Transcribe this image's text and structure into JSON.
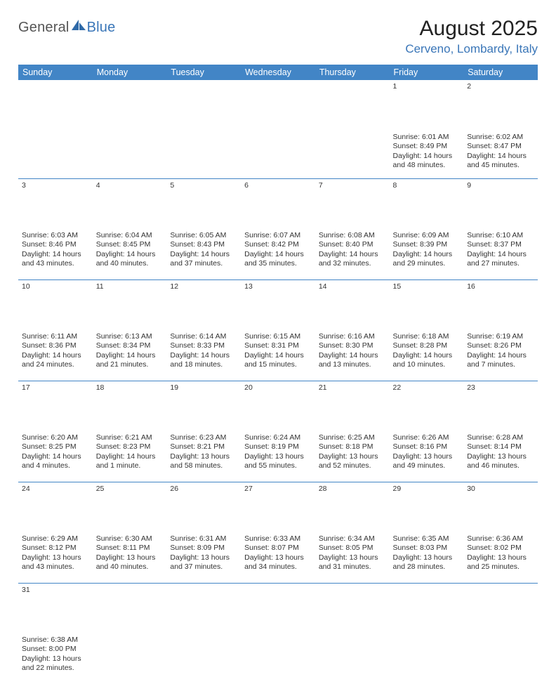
{
  "logo": {
    "text1": "General",
    "text2": "Blue"
  },
  "title": "August 2025",
  "location": "Cerveno, Lombardy, Italy",
  "day_header_bg": "#4285c6",
  "day_header_fg": "#ffffff",
  "daynum_bg": "#e7e7e7",
  "border_color": "#4285c6",
  "days_of_week": [
    "Sunday",
    "Monday",
    "Tuesday",
    "Wednesday",
    "Thursday",
    "Friday",
    "Saturday"
  ],
  "weeks": [
    [
      null,
      null,
      null,
      null,
      null,
      {
        "n": "1",
        "sr": "Sunrise: 6:01 AM",
        "ss": "Sunset: 8:49 PM",
        "dl": "Daylight: 14 hours and 48 minutes."
      },
      {
        "n": "2",
        "sr": "Sunrise: 6:02 AM",
        "ss": "Sunset: 8:47 PM",
        "dl": "Daylight: 14 hours and 45 minutes."
      }
    ],
    [
      {
        "n": "3",
        "sr": "Sunrise: 6:03 AM",
        "ss": "Sunset: 8:46 PM",
        "dl": "Daylight: 14 hours and 43 minutes."
      },
      {
        "n": "4",
        "sr": "Sunrise: 6:04 AM",
        "ss": "Sunset: 8:45 PM",
        "dl": "Daylight: 14 hours and 40 minutes."
      },
      {
        "n": "5",
        "sr": "Sunrise: 6:05 AM",
        "ss": "Sunset: 8:43 PM",
        "dl": "Daylight: 14 hours and 37 minutes."
      },
      {
        "n": "6",
        "sr": "Sunrise: 6:07 AM",
        "ss": "Sunset: 8:42 PM",
        "dl": "Daylight: 14 hours and 35 minutes."
      },
      {
        "n": "7",
        "sr": "Sunrise: 6:08 AM",
        "ss": "Sunset: 8:40 PM",
        "dl": "Daylight: 14 hours and 32 minutes."
      },
      {
        "n": "8",
        "sr": "Sunrise: 6:09 AM",
        "ss": "Sunset: 8:39 PM",
        "dl": "Daylight: 14 hours and 29 minutes."
      },
      {
        "n": "9",
        "sr": "Sunrise: 6:10 AM",
        "ss": "Sunset: 8:37 PM",
        "dl": "Daylight: 14 hours and 27 minutes."
      }
    ],
    [
      {
        "n": "10",
        "sr": "Sunrise: 6:11 AM",
        "ss": "Sunset: 8:36 PM",
        "dl": "Daylight: 14 hours and 24 minutes."
      },
      {
        "n": "11",
        "sr": "Sunrise: 6:13 AM",
        "ss": "Sunset: 8:34 PM",
        "dl": "Daylight: 14 hours and 21 minutes."
      },
      {
        "n": "12",
        "sr": "Sunrise: 6:14 AM",
        "ss": "Sunset: 8:33 PM",
        "dl": "Daylight: 14 hours and 18 minutes."
      },
      {
        "n": "13",
        "sr": "Sunrise: 6:15 AM",
        "ss": "Sunset: 8:31 PM",
        "dl": "Daylight: 14 hours and 15 minutes."
      },
      {
        "n": "14",
        "sr": "Sunrise: 6:16 AM",
        "ss": "Sunset: 8:30 PM",
        "dl": "Daylight: 14 hours and 13 minutes."
      },
      {
        "n": "15",
        "sr": "Sunrise: 6:18 AM",
        "ss": "Sunset: 8:28 PM",
        "dl": "Daylight: 14 hours and 10 minutes."
      },
      {
        "n": "16",
        "sr": "Sunrise: 6:19 AM",
        "ss": "Sunset: 8:26 PM",
        "dl": "Daylight: 14 hours and 7 minutes."
      }
    ],
    [
      {
        "n": "17",
        "sr": "Sunrise: 6:20 AM",
        "ss": "Sunset: 8:25 PM",
        "dl": "Daylight: 14 hours and 4 minutes."
      },
      {
        "n": "18",
        "sr": "Sunrise: 6:21 AM",
        "ss": "Sunset: 8:23 PM",
        "dl": "Daylight: 14 hours and 1 minute."
      },
      {
        "n": "19",
        "sr": "Sunrise: 6:23 AM",
        "ss": "Sunset: 8:21 PM",
        "dl": "Daylight: 13 hours and 58 minutes."
      },
      {
        "n": "20",
        "sr": "Sunrise: 6:24 AM",
        "ss": "Sunset: 8:19 PM",
        "dl": "Daylight: 13 hours and 55 minutes."
      },
      {
        "n": "21",
        "sr": "Sunrise: 6:25 AM",
        "ss": "Sunset: 8:18 PM",
        "dl": "Daylight: 13 hours and 52 minutes."
      },
      {
        "n": "22",
        "sr": "Sunrise: 6:26 AM",
        "ss": "Sunset: 8:16 PM",
        "dl": "Daylight: 13 hours and 49 minutes."
      },
      {
        "n": "23",
        "sr": "Sunrise: 6:28 AM",
        "ss": "Sunset: 8:14 PM",
        "dl": "Daylight: 13 hours and 46 minutes."
      }
    ],
    [
      {
        "n": "24",
        "sr": "Sunrise: 6:29 AM",
        "ss": "Sunset: 8:12 PM",
        "dl": "Daylight: 13 hours and 43 minutes."
      },
      {
        "n": "25",
        "sr": "Sunrise: 6:30 AM",
        "ss": "Sunset: 8:11 PM",
        "dl": "Daylight: 13 hours and 40 minutes."
      },
      {
        "n": "26",
        "sr": "Sunrise: 6:31 AM",
        "ss": "Sunset: 8:09 PM",
        "dl": "Daylight: 13 hours and 37 minutes."
      },
      {
        "n": "27",
        "sr": "Sunrise: 6:33 AM",
        "ss": "Sunset: 8:07 PM",
        "dl": "Daylight: 13 hours and 34 minutes."
      },
      {
        "n": "28",
        "sr": "Sunrise: 6:34 AM",
        "ss": "Sunset: 8:05 PM",
        "dl": "Daylight: 13 hours and 31 minutes."
      },
      {
        "n": "29",
        "sr": "Sunrise: 6:35 AM",
        "ss": "Sunset: 8:03 PM",
        "dl": "Daylight: 13 hours and 28 minutes."
      },
      {
        "n": "30",
        "sr": "Sunrise: 6:36 AM",
        "ss": "Sunset: 8:02 PM",
        "dl": "Daylight: 13 hours and 25 minutes."
      }
    ],
    [
      {
        "n": "31",
        "sr": "Sunrise: 6:38 AM",
        "ss": "Sunset: 8:00 PM",
        "dl": "Daylight: 13 hours and 22 minutes."
      },
      null,
      null,
      null,
      null,
      null,
      null
    ]
  ]
}
